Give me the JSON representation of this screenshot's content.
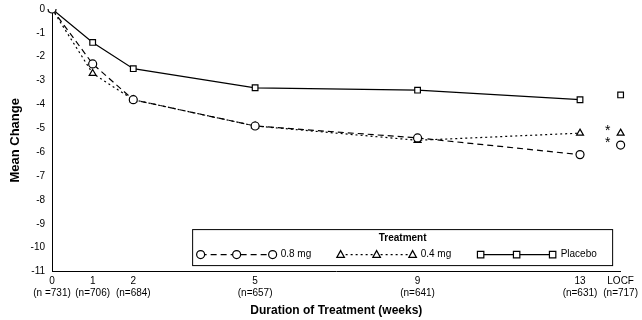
{
  "chart_data": {
    "type": "line",
    "x_label": "Duration of Treatment (weeks)",
    "y_label": "Mean Change",
    "categories": [
      "0\n(n =731)",
      "1\n(n=706)",
      "2\n(n=684)",
      null,
      null,
      "5\n(n=657)",
      null,
      null,
      null,
      "9\n(n=641)",
      null,
      null,
      null,
      "13\n(n=631)",
      "LOCF\n(n=717)"
    ],
    "series": [
      {
        "name": "0.8 mg",
        "color": "#000000",
        "marker": "circle",
        "line_style": "dashed",
        "values": [
          0,
          -2.3,
          -3.8,
          null,
          null,
          -4.9,
          null,
          null,
          null,
          -5.4,
          null,
          null,
          null,
          -6.1,
          -5.7
        ]
      },
      {
        "name": "0.4 mg",
        "color": "#000000",
        "marker": "triangle",
        "line_style": "dotted",
        "values": [
          0,
          -2.7,
          -3.8,
          null,
          null,
          -4.9,
          null,
          null,
          null,
          -5.5,
          null,
          null,
          null,
          -5.2,
          -5.2
        ]
      },
      {
        "name": "Placebo",
        "color": "#000000",
        "marker": "square",
        "line_style": "solid",
        "values": [
          0,
          -1.4,
          -2.5,
          null,
          null,
          -3.3,
          null,
          null,
          null,
          -3.4,
          null,
          null,
          null,
          -3.8,
          -3.6
        ]
      }
    ],
    "ylim": [
      -11,
      0
    ],
    "yticks": [
      0,
      -1,
      -2,
      -3,
      -4,
      -5,
      -6,
      -7,
      -8,
      -9,
      -10,
      -11
    ],
    "grid": false,
    "legend": "bottom",
    "legend_title": "Treatment",
    "annotations": [
      {
        "text": "*",
        "series": "0.8 mg"
      },
      {
        "text": "*",
        "series": "0.4 mg"
      }
    ]
  }
}
